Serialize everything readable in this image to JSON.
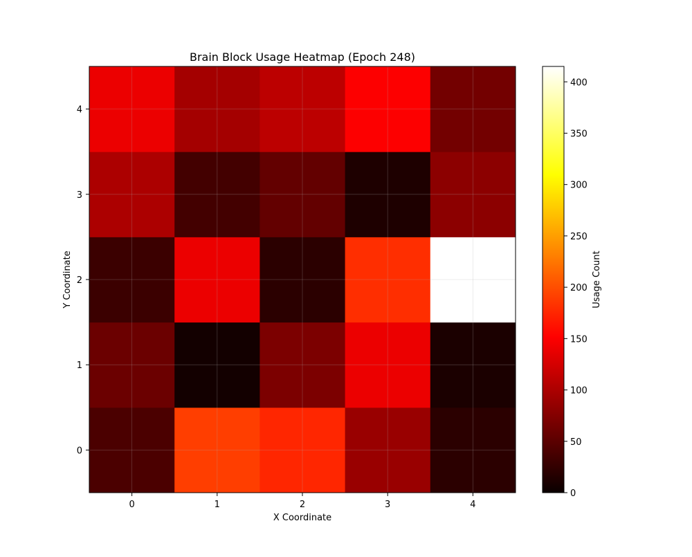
{
  "chart_data": {
    "type": "heatmap",
    "title": "Brain Block Usage Heatmap (Epoch 248)",
    "xlabel": "X Coordinate",
    "ylabel": "Y Coordinate",
    "x_ticks": [
      "0",
      "1",
      "2",
      "3",
      "4"
    ],
    "y_ticks": [
      "0",
      "1",
      "2",
      "3",
      "4"
    ],
    "grid": true,
    "colormap": "hot",
    "colorbar": {
      "label": "Usage Count",
      "min": 0,
      "max": 415,
      "ticks": [
        0,
        50,
        100,
        150,
        200,
        250,
        300,
        350,
        400
      ],
      "tick_labels": [
        "0",
        "50",
        "100",
        "150",
        "200",
        "250",
        "300",
        "350",
        "400"
      ]
    },
    "grid_values_by_y": [
      [
        40,
        190,
        175,
        88,
        20
      ],
      [
        60,
        5,
        70,
        140,
        10
      ],
      [
        30,
        140,
        20,
        180,
        415
      ],
      [
        100,
        35,
        55,
        12,
        80
      ],
      [
        140,
        95,
        110,
        150,
        65
      ]
    ]
  }
}
